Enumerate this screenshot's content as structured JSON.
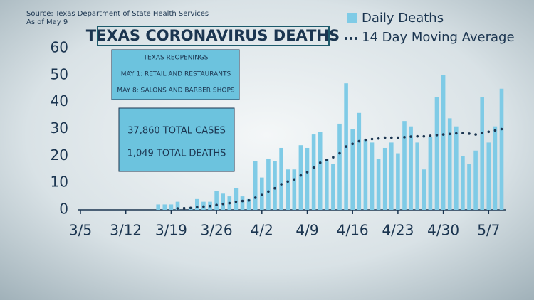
{
  "chart_data": {
    "type": "bar",
    "title": "TEXAS CORONAVIRUS DEATHS",
    "source": "Source: Texas Department of State Health Services",
    "as_of": "As of May 9",
    "annotations": {
      "reopenings": [
        "TEXAS REOPENINGS",
        "MAY 1: RETAIL AND RESTAURANTS",
        "MAY 8: SALONS AND BARBER SHOPS"
      ],
      "totals": [
        "37,860 TOTAL CASES",
        "1,049 TOTAL DEATHS"
      ]
    },
    "categories": [
      "3/5",
      null,
      null,
      null,
      null,
      null,
      null,
      "3/12",
      null,
      null,
      null,
      null,
      null,
      null,
      "3/19",
      null,
      null,
      null,
      null,
      null,
      null,
      "3/26",
      null,
      null,
      null,
      null,
      null,
      null,
      "4/2",
      null,
      null,
      null,
      null,
      null,
      null,
      "4/9",
      null,
      null,
      null,
      null,
      null,
      null,
      "4/16",
      null,
      null,
      null,
      null,
      null,
      null,
      "4/23",
      null,
      null,
      null,
      null,
      null,
      null,
      "4/30",
      null,
      null,
      null,
      null,
      null,
      null,
      "5/7",
      null,
      null
    ],
    "series": [
      {
        "name": "Daily Deaths",
        "color": "#7fcbe6",
        "values": [
          null,
          null,
          null,
          null,
          null,
          null,
          null,
          null,
          null,
          null,
          null,
          null,
          2,
          2,
          2,
          3,
          0,
          1,
          4,
          3,
          3,
          7,
          6,
          5,
          8,
          5,
          4,
          18,
          12,
          19,
          18,
          23,
          15,
          15,
          24,
          23,
          28,
          29,
          19,
          17,
          32,
          47,
          30,
          36,
          26,
          25,
          19,
          23,
          25,
          21,
          33,
          31,
          25,
          15,
          27,
          42,
          50,
          34,
          31,
          20,
          17,
          22,
          42,
          25,
          31,
          45
        ]
      },
      {
        "name": "14 Day Moving Average",
        "color": "#1b3550",
        "values": [
          null,
          null,
          null,
          null,
          null,
          null,
          null,
          null,
          null,
          null,
          null,
          null,
          null,
          null,
          null,
          0.5,
          0.6,
          0.7,
          1,
          1.2,
          1.4,
          1.8,
          2.2,
          2.5,
          3,
          3.3,
          3.5,
          4.5,
          5.5,
          6.8,
          8,
          9.5,
          10.5,
          11.3,
          12.8,
          14,
          15.7,
          17.5,
          18.5,
          19.5,
          21,
          23.5,
          24.5,
          25.5,
          26,
          26.3,
          26.5,
          26.8,
          26.8,
          26.8,
          27,
          27.2,
          27.3,
          27.3,
          27.5,
          27.8,
          28,
          28.2,
          28.4,
          28.5,
          28.3,
          28,
          28.5,
          29,
          29.5,
          30
        ]
      }
    ],
    "ylim": [
      0,
      60
    ],
    "yticks": [
      0,
      10,
      20,
      30,
      40,
      50,
      60
    ]
  }
}
